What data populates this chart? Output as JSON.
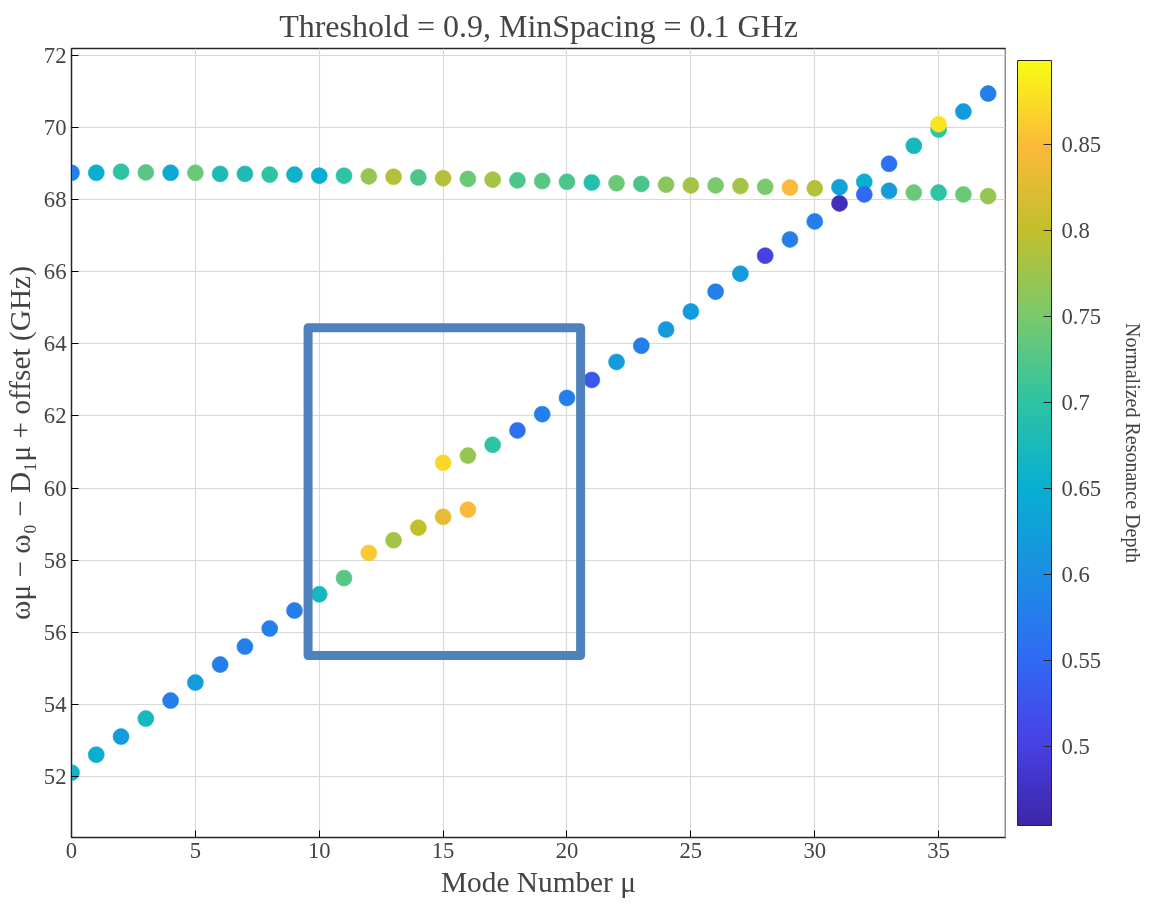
{
  "chart_data": {
    "type": "scatter",
    "title": "Threshold = 0.9, MinSpacing = 0.1 GHz",
    "xlabel": "Mode Number μ",
    "ylabel": "ωμ − ω₀ − D₁μ + offset (GHz)",
    "clabel": "Normalized Resonance Depth",
    "xlim": [
      0,
      37.7
    ],
    "xticks": [
      0,
      5,
      10,
      15,
      20,
      25,
      30,
      35
    ],
    "ylim": [
      50.3,
      72.2
    ],
    "yticks": [
      52,
      54,
      56,
      58,
      60,
      62,
      64,
      66,
      68,
      70,
      72
    ],
    "clim": [
      0.454,
      0.899
    ],
    "cticks": [
      0.5,
      0.55,
      0.6,
      0.65,
      0.7,
      0.75,
      0.8,
      0.85
    ],
    "grid": true,
    "marker": "circle",
    "series": [
      {
        "x": [
          0,
          1,
          2,
          3,
          4,
          5,
          6,
          7,
          8,
          9,
          10,
          11,
          12,
          13,
          14,
          15,
          15,
          16,
          16,
          17,
          18,
          19,
          20,
          21,
          22,
          23,
          24,
          25,
          26,
          27,
          28,
          29,
          30,
          31,
          32,
          33,
          34,
          35,
          36,
          37
        ],
        "values": [
          52.1,
          52.6,
          53.1,
          53.6,
          54.1,
          54.6,
          55.1,
          55.6,
          56.1,
          56.6,
          57.05,
          57.5,
          58.2,
          58.55,
          58.9,
          59.2,
          60.7,
          59.4,
          60.9,
          61.2,
          61.6,
          62.05,
          62.5,
          63.0,
          63.5,
          63.95,
          64.4,
          64.9,
          65.45,
          65.95,
          66.45,
          66.9,
          67.4,
          67.9,
          68.15,
          69.0,
          69.5,
          70.1,
          70.45,
          70.95
        ],
        "cvalues": [
          0.66,
          0.65,
          0.62,
          0.67,
          0.58,
          0.62,
          0.58,
          0.58,
          0.58,
          0.58,
          0.67,
          0.73,
          0.86,
          0.78,
          0.8,
          0.83,
          0.87,
          0.85,
          0.77,
          0.7,
          0.56,
          0.58,
          0.58,
          0.53,
          0.62,
          0.58,
          0.62,
          0.62,
          0.58,
          0.62,
          0.5,
          0.58,
          0.58,
          0.47,
          0.55,
          0.56,
          0.67,
          0.88,
          0.62,
          0.58
        ],
        "colors": [
          "#0eb3c8",
          "#09aed1",
          "#149bdc",
          "#16b7bf",
          "#247fea",
          "#149bdc",
          "#247fea",
          "#247fea",
          "#247fea",
          "#247fea",
          "#16b7bf",
          "#5ac683",
          "#fbc832",
          "#a5c346",
          "#c3bf2c",
          "#e6bb35",
          "#fad629",
          "#fbba3a",
          "#96c553",
          "#2dc3a3",
          "#2d70f2",
          "#247fea",
          "#247fea",
          "#3b58ed",
          "#149bdc",
          "#247fea",
          "#149bdc",
          "#149bdc",
          "#247fea",
          "#149bdc",
          "#4641e1",
          "#247fea",
          "#247fea",
          "#412fbc",
          "#306af3",
          "#2d70f2",
          "#16b7bf",
          "#fae421",
          "#149bdc",
          "#247fea"
        ]
      },
      {
        "x": [
          0,
          1,
          2,
          3,
          4,
          5,
          6,
          7,
          8,
          9,
          10,
          11,
          12,
          13,
          14,
          15,
          16,
          17,
          18,
          19,
          20,
          21,
          22,
          23,
          24,
          25,
          26,
          27,
          28,
          29,
          30,
          31,
          32,
          33,
          34,
          35,
          35,
          36,
          37
        ],
        "values": [
          68.75,
          68.75,
          68.78,
          68.76,
          68.75,
          68.75,
          68.72,
          68.72,
          68.7,
          68.7,
          68.67,
          68.67,
          68.65,
          68.64,
          68.62,
          68.6,
          68.58,
          68.56,
          68.54,
          68.52,
          68.5,
          68.48,
          68.46,
          68.44,
          68.42,
          68.4,
          68.4,
          68.38,
          68.36,
          68.34,
          68.32,
          68.35,
          68.5,
          68.25,
          68.2,
          69.95,
          68.2,
          68.15,
          68.1
        ],
        "cvalues": [
          0.58,
          0.65,
          0.7,
          0.73,
          0.64,
          0.74,
          0.68,
          0.68,
          0.7,
          0.66,
          0.65,
          0.7,
          0.77,
          0.79,
          0.72,
          0.79,
          0.74,
          0.78,
          0.72,
          0.73,
          0.72,
          0.69,
          0.74,
          0.72,
          0.76,
          0.78,
          0.75,
          0.78,
          0.75,
          0.85,
          0.79,
          0.63,
          0.65,
          0.62,
          0.74,
          0.7,
          0.7,
          0.74,
          0.77
        ],
        "colors": [
          "#247fea",
          "#09aed1",
          "#2dc3a3",
          "#5ac683",
          "#0ca9d4",
          "#6ac877",
          "#1ebbb5",
          "#1ebbb5",
          "#2dc3a3",
          "#0eb3c8",
          "#09aed1",
          "#2dc3a3",
          "#96c553",
          "#b4c138",
          "#4cc58c",
          "#b4c138",
          "#6ac877",
          "#a5c346",
          "#4cc58c",
          "#5ac683",
          "#4cc58c",
          "#25bfad",
          "#6ac877",
          "#4cc58c",
          "#89c75e",
          "#a5c346",
          "#7ac96c",
          "#a5c346",
          "#7ac96c",
          "#fbba3a",
          "#b4c138",
          "#10a2d8",
          "#09aed1",
          "#149bdc",
          "#6ac877",
          "#2dc3a3",
          "#2dc3a3",
          "#6ac877",
          "#96c553"
        ]
      }
    ]
  }
}
